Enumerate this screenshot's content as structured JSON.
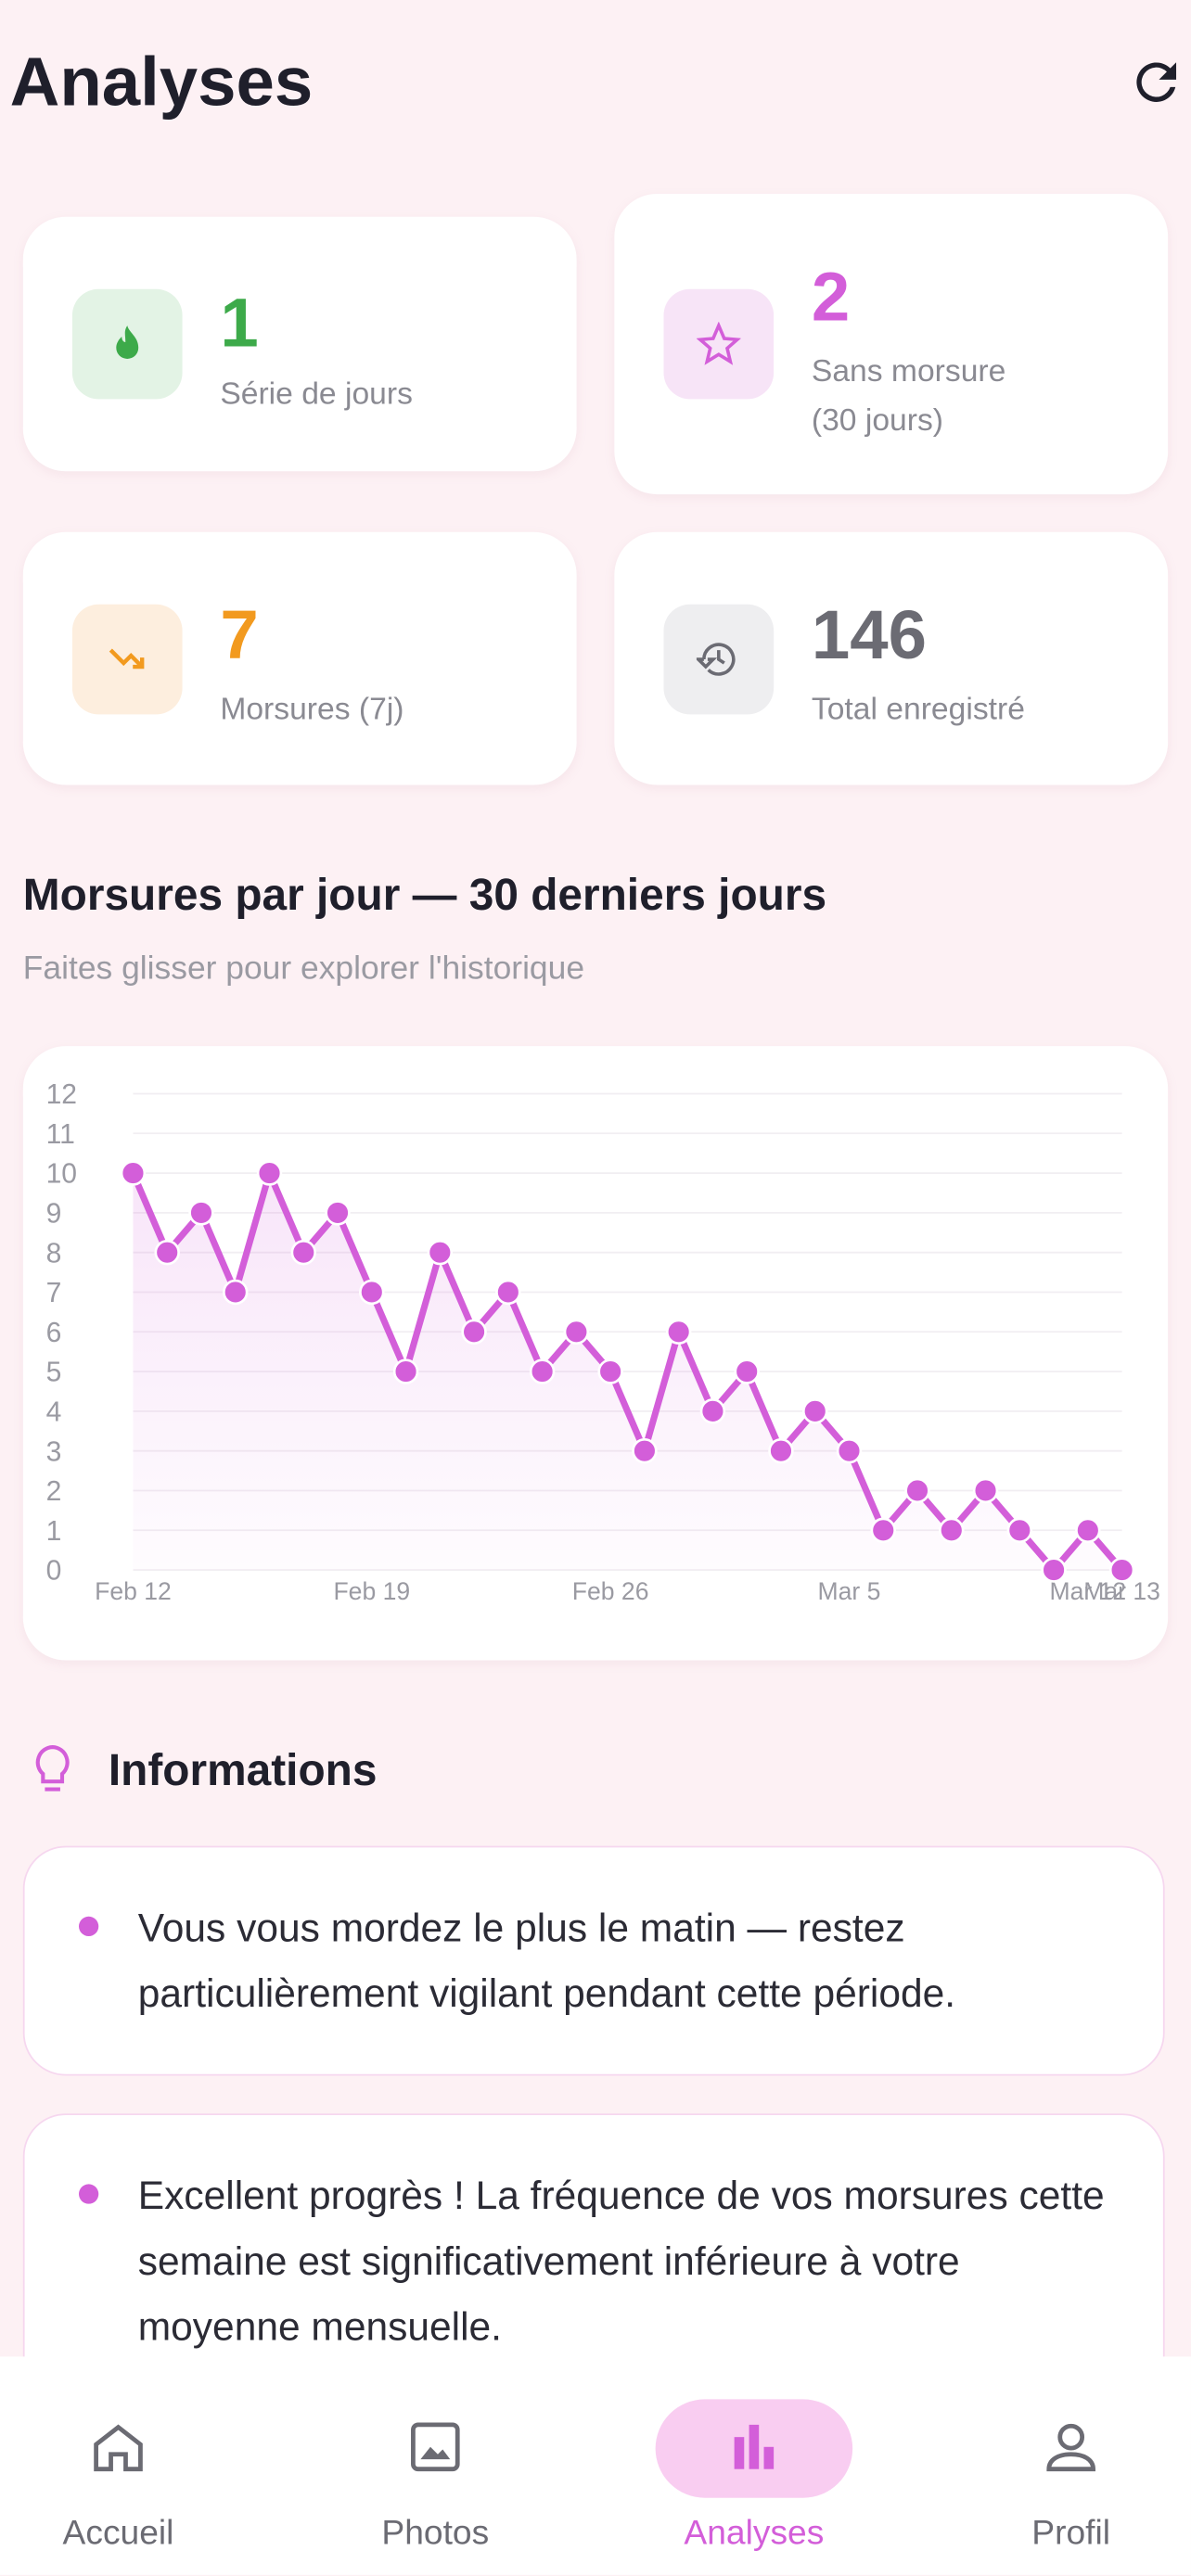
{
  "header": {
    "title": "Analyses"
  },
  "stats": [
    {
      "value": "1",
      "label": "Série de jours"
    },
    {
      "value": "2",
      "label": "Sans morsure (30 jours)"
    },
    {
      "value": "7",
      "label": "Morsures (7j)"
    },
    {
      "value": "146",
      "label": "Total enregistré"
    }
  ],
  "chart_data": {
    "type": "line",
    "title": "Morsures par jour — 30 derniers jours",
    "subtitle": "Faites glisser pour explorer l'historique",
    "categories": [
      "Feb 12",
      null,
      null,
      null,
      null,
      null,
      null,
      "Feb 19",
      null,
      null,
      null,
      null,
      null,
      null,
      "Feb 26",
      null,
      null,
      null,
      null,
      null,
      null,
      "Mar 5",
      null,
      null,
      null,
      null,
      null,
      null,
      "Mar 12",
      "Mar 13"
    ],
    "values": [
      10,
      8,
      9,
      7,
      10,
      8,
      9,
      7,
      5,
      8,
      6,
      7,
      5,
      6,
      5,
      3,
      6,
      4,
      5,
      3,
      4,
      3,
      1,
      2,
      1,
      2,
      1,
      0,
      1,
      0
    ],
    "color": "#d35ed9",
    "ylim": [
      0,
      12
    ],
    "yticks": [
      0,
      1,
      2,
      3,
      4,
      5,
      6,
      7,
      8,
      9,
      10,
      11,
      12
    ],
    "grid": true
  },
  "insights": {
    "title": "Informations",
    "items": [
      "Vous vous mordez le plus le matin — restez particulièrement vigilant pendant cette période.",
      "Excellent progrès ! La fréquence de vos morsures cette semaine est significativement inférieure à votre moyenne mensuelle."
    ]
  },
  "nav": [
    "Accueil",
    "Photos",
    "Analyses",
    "Profil"
  ]
}
